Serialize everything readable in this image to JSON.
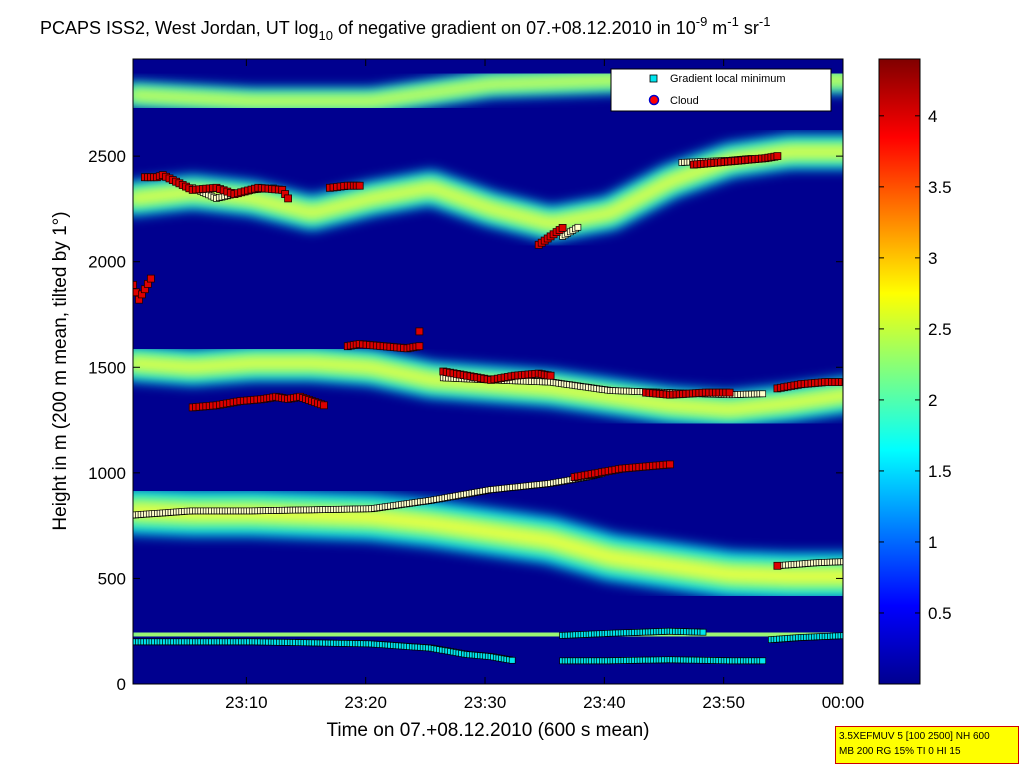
{
  "chart_data": {
    "type": "heatmap",
    "title": {
      "main": "PCAPS ISS2, West Jordan, UT log",
      "sub10": "10",
      "rest": " of negative gradient on 07.+08.12.2010 in 10",
      "exp1": "-9",
      "m": " m",
      "exp2": "-1",
      "sr": " sr",
      "exp3": "-1"
    },
    "xlabel": "Time on 07.+08.12.2010 (600 s mean)",
    "ylabel": "Height in m (200 m mean, tilted by 1°)",
    "x_range_min": [
      0,
      119
    ],
    "ylim": [
      0,
      2960
    ],
    "x_ticks": [
      {
        "label": "23:10",
        "t": 19
      },
      {
        "label": "23:20",
        "t": 39
      },
      {
        "label": "23:30",
        "t": 59
      },
      {
        "label": "23:40",
        "t": 79
      },
      {
        "label": "23:50",
        "t": 99
      },
      {
        "label": "00:00",
        "t": 119
      }
    ],
    "y_ticks": [
      0,
      500,
      1000,
      1500,
      2000,
      2500
    ],
    "colorbar": {
      "range": [
        0,
        4.4
      ],
      "ticks": [
        "0.5",
        "1",
        "1.5",
        "2",
        "2.5",
        "3",
        "3.5",
        "4"
      ],
      "tick_values": [
        0.5,
        1,
        1.5,
        2,
        2.5,
        3,
        3.5,
        4
      ]
    },
    "legend": {
      "position": "top-right",
      "entries": [
        "Gradient local minimum",
        "Cloud"
      ]
    },
    "layers": [
      {
        "name": "lower",
        "points": [
          [
            0,
            820
          ],
          [
            10,
            810
          ],
          [
            20,
            810
          ],
          [
            30,
            800
          ],
          [
            40,
            790
          ],
          [
            50,
            760
          ],
          [
            60,
            720
          ],
          [
            70,
            680
          ],
          [
            80,
            600
          ],
          [
            90,
            560
          ],
          [
            100,
            520
          ],
          [
            110,
            510
          ],
          [
            120,
            510
          ]
        ],
        "width": 220
      },
      {
        "name": "mid",
        "points": [
          [
            0,
            1520
          ],
          [
            10,
            1500
          ],
          [
            20,
            1520
          ],
          [
            30,
            1520
          ],
          [
            40,
            1500
          ],
          [
            50,
            1440
          ],
          [
            60,
            1420
          ],
          [
            70,
            1400
          ],
          [
            80,
            1360
          ],
          [
            90,
            1320
          ],
          [
            100,
            1300
          ],
          [
            110,
            1330
          ],
          [
            120,
            1370
          ]
        ],
        "width": 170
      },
      {
        "name": "upper",
        "points": [
          [
            0,
            2300
          ],
          [
            10,
            2330
          ],
          [
            20,
            2300
          ],
          [
            30,
            2230
          ],
          [
            40,
            2300
          ],
          [
            50,
            2350
          ],
          [
            60,
            2250
          ],
          [
            70,
            2180
          ],
          [
            80,
            2230
          ],
          [
            90,
            2380
          ],
          [
            100,
            2480
          ],
          [
            110,
            2520
          ],
          [
            120,
            2520
          ]
        ],
        "width": 160
      },
      {
        "name": "top",
        "points": [
          [
            0,
            2790
          ],
          [
            20,
            2760
          ],
          [
            40,
            2760
          ],
          [
            60,
            2840
          ],
          [
            80,
            2860
          ],
          [
            100,
            2860
          ],
          [
            120,
            2860
          ]
        ],
        "width": 120
      },
      {
        "name": "ground",
        "points": [
          [
            0,
            230
          ],
          [
            40,
            230
          ],
          [
            80,
            230
          ],
          [
            120,
            240
          ]
        ],
        "width": 110
      }
    ],
    "gradient_minimum_series": [
      {
        "points": [
          [
            0,
            800
          ],
          [
            10,
            820
          ],
          [
            20,
            820
          ],
          [
            30,
            825
          ],
          [
            40,
            830
          ],
          [
            50,
            870
          ],
          [
            60,
            920
          ],
          [
            70,
            950
          ],
          [
            76,
            980
          ],
          [
            79,
            1000
          ]
        ]
      },
      {
        "points": [
          [
            52,
            1450
          ],
          [
            60,
            1440
          ],
          [
            70,
            1430
          ],
          [
            80,
            1390
          ],
          [
            90,
            1380
          ],
          [
            100,
            1370
          ],
          [
            106,
            1375
          ]
        ]
      },
      {
        "points": [
          [
            0,
            200
          ],
          [
            10,
            200
          ],
          [
            20,
            200
          ],
          [
            30,
            195
          ],
          [
            40,
            190
          ],
          [
            50,
            170
          ],
          [
            56,
            140
          ],
          [
            60,
            130
          ],
          [
            64,
            110
          ]
        ]
      },
      {
        "points": [
          [
            72,
            230
          ],
          [
            80,
            240
          ],
          [
            90,
            250
          ],
          [
            96,
            245
          ]
        ]
      },
      {
        "points": [
          [
            72,
            110
          ],
          [
            80,
            110
          ],
          [
            90,
            115
          ],
          [
            100,
            110
          ],
          [
            106,
            110
          ]
        ]
      },
      {
        "points": [
          [
            107,
            210
          ],
          [
            112,
            220
          ],
          [
            120,
            230
          ]
        ]
      },
      {
        "points": [
          [
            108,
            560
          ],
          [
            115,
            575
          ],
          [
            120,
            580
          ]
        ]
      },
      {
        "points": [
          [
            10,
            2350
          ],
          [
            14,
            2300
          ],
          [
            20,
            2340
          ],
          [
            24,
            2350
          ]
        ]
      },
      {
        "points": [
          [
            92,
            2470
          ],
          [
            100,
            2480
          ],
          [
            104,
            2490
          ]
        ]
      },
      {
        "points": [
          [
            72,
            2120
          ],
          [
            75,
            2170
          ]
        ]
      }
    ],
    "cloud_series": [
      {
        "points": [
          [
            0,
            1890
          ],
          [
            1,
            1820
          ],
          [
            3,
            1920
          ]
        ]
      },
      {
        "points": [
          [
            2,
            2400
          ],
          [
            4,
            2400
          ],
          [
            5,
            2410
          ],
          [
            10,
            2340
          ],
          [
            14,
            2350
          ],
          [
            17,
            2320
          ],
          [
            21,
            2350
          ],
          [
            25,
            2340
          ],
          [
            26,
            2300
          ]
        ]
      },
      {
        "points": [
          [
            33,
            2350
          ],
          [
            36,
            2360
          ],
          [
            38,
            2360
          ]
        ]
      },
      {
        "points": [
          [
            10,
            1310
          ],
          [
            14,
            1320
          ],
          [
            18,
            1340
          ],
          [
            22,
            1350
          ],
          [
            24,
            1360
          ],
          [
            26,
            1350
          ],
          [
            28,
            1360
          ],
          [
            30,
            1340
          ],
          [
            32,
            1320
          ]
        ]
      },
      {
        "points": [
          [
            36,
            1600
          ],
          [
            38,
            1610
          ],
          [
            42,
            1600
          ],
          [
            46,
            1590
          ],
          [
            48,
            1600
          ]
        ]
      },
      {
        "points": [
          [
            52,
            1480
          ],
          [
            56,
            1460
          ],
          [
            60,
            1440
          ],
          [
            64,
            1460
          ],
          [
            68,
            1470
          ],
          [
            70,
            1460
          ]
        ]
      },
      {
        "points": [
          [
            74,
            980
          ],
          [
            78,
            1000
          ],
          [
            82,
            1020
          ],
          [
            86,
            1030
          ],
          [
            90,
            1040
          ]
        ]
      },
      {
        "points": [
          [
            68,
            2080
          ],
          [
            70,
            2120
          ],
          [
            72,
            2160
          ]
        ]
      },
      {
        "points": [
          [
            94,
            2460
          ],
          [
            98,
            2470
          ],
          [
            102,
            2480
          ],
          [
            106,
            2490
          ],
          [
            108,
            2500
          ]
        ]
      },
      {
        "points": [
          [
            86,
            1380
          ],
          [
            90,
            1370
          ],
          [
            96,
            1380
          ],
          [
            100,
            1380
          ]
        ]
      },
      {
        "points": [
          [
            108,
            1400
          ],
          [
            112,
            1420
          ],
          [
            116,
            1430
          ],
          [
            120,
            1430
          ]
        ]
      },
      {
        "points": [
          [
            108,
            560
          ]
        ]
      },
      {
        "points": [
          [
            48,
            1670
          ]
        ]
      }
    ]
  },
  "info_box": {
    "line1": "3.5XEFMUV 5 [100 2500] NH 600",
    "line2": "MB 200 RG 15% TI 0 HI 15"
  }
}
